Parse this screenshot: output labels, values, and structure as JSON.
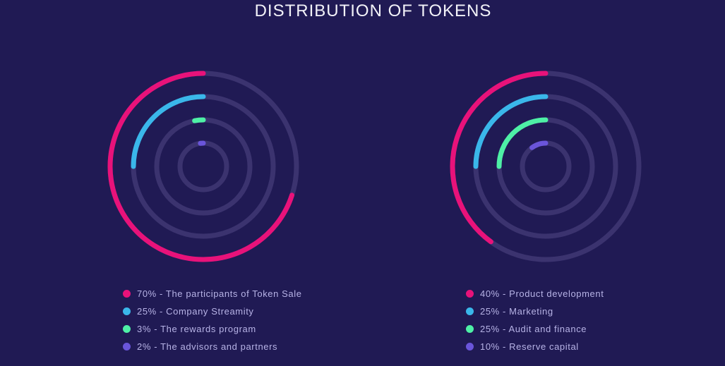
{
  "title": "DISTRIBUTION OF TOKENS",
  "track_color": "#3b336f",
  "chart_data": [
    {
      "type": "pie",
      "categories": [
        "The participants of Token Sale",
        "Company Streamity",
        "The rewards program",
        "The advisors and partners"
      ],
      "values": [
        70,
        25,
        3,
        2
      ],
      "colors": [
        "#e8127a",
        "#3ab7ea",
        "#4ef0a6",
        "#6a55da"
      ],
      "legend": [
        "70% - The participants of Token Sale",
        "25% - Company Streamity",
        "3% - The rewards program",
        "2% - The advisors and partners"
      ]
    },
    {
      "type": "pie",
      "categories": [
        "Product development",
        "Marketing",
        "Audit and finance",
        "Reserve capital"
      ],
      "values": [
        40,
        25,
        25,
        10
      ],
      "colors": [
        "#e8127a",
        "#3ab7ea",
        "#4ef0a6",
        "#6a55da"
      ],
      "legend": [
        "40% - Product development",
        "25% - Marketing",
        "25% - Audit and finance",
        "10% - Reserve capital"
      ]
    }
  ]
}
